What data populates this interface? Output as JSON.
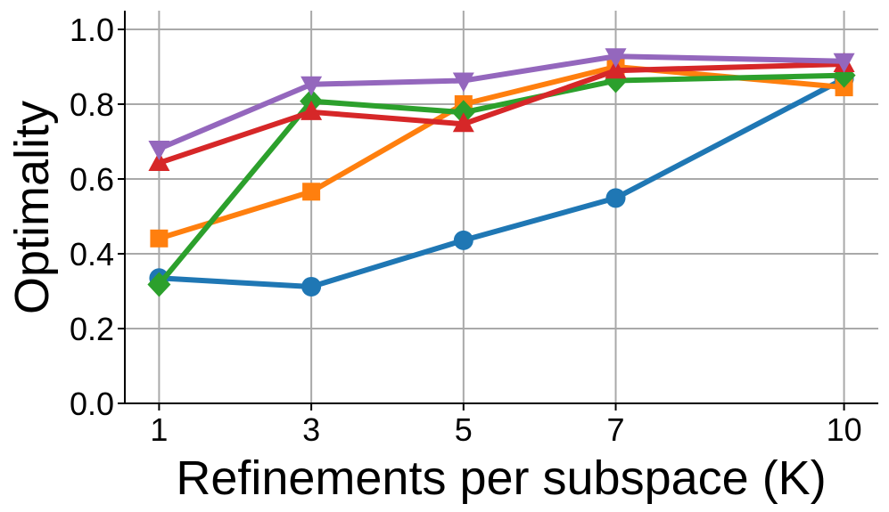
{
  "chart_data": {
    "type": "line",
    "title": "",
    "xlabel": "Refinements per subspace (K)",
    "ylabel": "Optimality",
    "x": [
      1,
      3,
      5,
      7,
      10
    ],
    "x_tick_labels": [
      "1",
      "3",
      "5",
      "7",
      "10"
    ],
    "y_ticks": [
      0.0,
      0.2,
      0.4,
      0.6,
      0.8,
      1.0
    ],
    "y_tick_labels": [
      "0.0",
      "0.2",
      "0.4",
      "0.6",
      "0.8",
      "1.0"
    ],
    "xlim": [
      0.55,
      10.45
    ],
    "ylim": [
      0.0,
      1.05
    ],
    "grid": true,
    "legend": "none",
    "series": [
      {
        "color": "#1f77b4",
        "marker": "circle",
        "values": [
          0.335,
          0.312,
          0.436,
          0.549,
          0.868
        ]
      },
      {
        "color": "#ff7f0e",
        "marker": "square",
        "values": [
          0.441,
          0.566,
          0.8,
          0.9,
          0.845
        ]
      },
      {
        "color": "#2ca02c",
        "marker": "diamond",
        "values": [
          0.318,
          0.808,
          0.778,
          0.863,
          0.877
        ]
      },
      {
        "color": "#d62728",
        "marker": "triangle-up",
        "values": [
          0.643,
          0.779,
          0.747,
          0.89,
          0.907
        ]
      },
      {
        "color": "#9467bd",
        "marker": "triangle-down",
        "values": [
          0.681,
          0.853,
          0.863,
          0.928,
          0.915
        ]
      }
    ]
  }
}
